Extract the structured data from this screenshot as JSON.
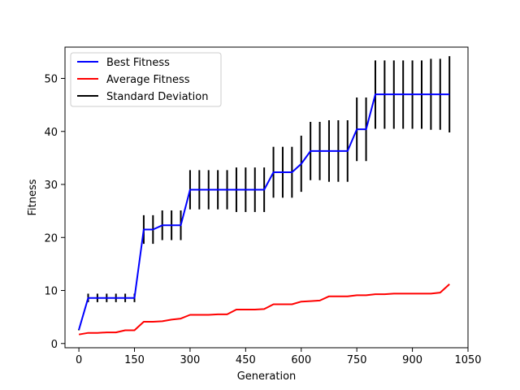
{
  "chart_data": {
    "type": "line",
    "title": "",
    "xlabel": "Generation",
    "ylabel": "Fitness",
    "xlim": [
      -37.5,
      1050
    ],
    "ylim": [
      -0.8,
      55.9
    ],
    "xticks": [
      0,
      150,
      300,
      450,
      600,
      750,
      900,
      1050
    ],
    "yticks": [
      0,
      10,
      20,
      30,
      40,
      50
    ],
    "legend_position": "top-left",
    "grid": false,
    "x": [
      0,
      25,
      50,
      75,
      100,
      125,
      150,
      175,
      200,
      225,
      250,
      275,
      300,
      325,
      350,
      375,
      400,
      425,
      450,
      475,
      500,
      525,
      550,
      575,
      600,
      625,
      650,
      675,
      700,
      725,
      750,
      775,
      800,
      825,
      850,
      875,
      900,
      925,
      950,
      975,
      1000
    ],
    "series": [
      {
        "name": "Best Fitness",
        "color": "#0000ff",
        "values": [
          2.6,
          8.6,
          8.6,
          8.6,
          8.6,
          8.6,
          8.6,
          21.5,
          21.5,
          22.3,
          22.3,
          22.3,
          29.0,
          29.0,
          29.0,
          29.0,
          29.0,
          29.0,
          29.0,
          29.0,
          29.0,
          32.3,
          32.3,
          32.3,
          33.9,
          36.3,
          36.3,
          36.3,
          36.3,
          36.3,
          40.4,
          40.4,
          47.0,
          47.0,
          47.0,
          47.0,
          47.0,
          47.0,
          47.0,
          47.0,
          47.0
        ]
      },
      {
        "name": "Average Fitness",
        "color": "#ff0000",
        "values": [
          1.7,
          2.0,
          2.0,
          2.1,
          2.1,
          2.5,
          2.5,
          4.1,
          4.1,
          4.2,
          4.5,
          4.7,
          5.4,
          5.4,
          5.4,
          5.5,
          5.5,
          6.4,
          6.4,
          6.4,
          6.5,
          7.4,
          7.4,
          7.4,
          7.9,
          8.0,
          8.1,
          8.9,
          8.9,
          8.9,
          9.1,
          9.1,
          9.3,
          9.3,
          9.4,
          9.4,
          9.4,
          9.4,
          9.4,
          9.6,
          11.2
        ]
      }
    ],
    "error_bars": {
      "name": "Standard Deviation",
      "color": "#000000",
      "lower": [
        2.5,
        7.8,
        7.8,
        7.8,
        7.8,
        7.8,
        7.8,
        18.8,
        18.8,
        19.5,
        19.5,
        19.5,
        25.3,
        25.3,
        25.3,
        25.3,
        25.3,
        24.8,
        24.8,
        24.8,
        24.8,
        27.5,
        27.5,
        27.5,
        28.6,
        30.8,
        30.8,
        30.5,
        30.5,
        30.5,
        34.4,
        34.4,
        40.5,
        40.5,
        40.5,
        40.5,
        40.5,
        40.5,
        40.3,
        40.3,
        39.8
      ],
      "upper": [
        2.7,
        9.4,
        9.4,
        9.4,
        9.4,
        9.4,
        9.4,
        24.2,
        24.2,
        25.1,
        25.1,
        25.1,
        32.7,
        32.7,
        32.7,
        32.7,
        32.7,
        33.2,
        33.2,
        33.2,
        33.2,
        37.1,
        37.1,
        37.1,
        39.2,
        41.8,
        41.8,
        42.1,
        42.1,
        42.1,
        46.4,
        46.4,
        53.4,
        53.4,
        53.4,
        53.4,
        53.4,
        53.4,
        53.7,
        53.7,
        54.2
      ]
    }
  }
}
